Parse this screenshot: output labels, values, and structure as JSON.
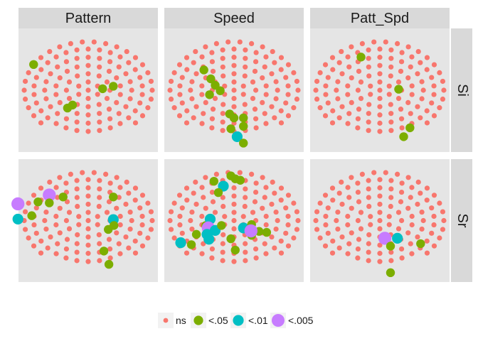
{
  "chart_data": {
    "type": "scatter",
    "facet_columns": [
      "Pattern",
      "Speed",
      "Patt_Spd"
    ],
    "facet_rows": [
      "Si",
      "Sr"
    ],
    "layout": "grid",
    "x_range": [
      -1,
      1
    ],
    "y_range": [
      -1,
      1
    ],
    "grid": false,
    "axes_shown": false,
    "background": "#e5e5e5",
    "strip_background": "#d9d9d9",
    "legend": {
      "position": "bottom",
      "title": "",
      "levels": [
        {
          "label": "ns",
          "color": "#f8766d",
          "size": "small"
        },
        {
          "label": "<.05",
          "color": "#7cae00",
          "size": "medium"
        },
        {
          "label": "<.01",
          "color": "#00bfc4",
          "size": "large"
        },
        {
          "label": "<.005",
          "color": "#c77cff",
          "size": "largest"
        }
      ]
    },
    "electrode_layout": "the same ~120 electrode sites (ns, red) appear in every panel",
    "significant_points": [
      {
        "row": "Si",
        "col": "Pattern",
        "points": [
          {
            "x": -0.87,
            "y": 0.52,
            "level": "<.05"
          },
          {
            "x": 0.23,
            "y": 0.03,
            "level": "<.05"
          },
          {
            "x": 0.4,
            "y": 0.08,
            "level": "<.05"
          },
          {
            "x": -0.33,
            "y": -0.36,
            "level": "<.05"
          },
          {
            "x": -0.25,
            "y": -0.3,
            "level": "<.05"
          }
        ]
      },
      {
        "row": "Si",
        "col": "Speed",
        "points": [
          {
            "x": -0.48,
            "y": 0.41,
            "level": "<.05"
          },
          {
            "x": -0.37,
            "y": 0.23,
            "level": "<.05"
          },
          {
            "x": -0.3,
            "y": 0.1,
            "level": "<.05"
          },
          {
            "x": -0.22,
            "y": -0.01,
            "level": "<.05"
          },
          {
            "x": -0.39,
            "y": -0.09,
            "level": "<.05"
          },
          {
            "x": -0.07,
            "y": -0.48,
            "level": "<.05"
          },
          {
            "x": 0.0,
            "y": -0.56,
            "level": "<.05"
          },
          {
            "x": 0.15,
            "y": -0.56,
            "level": "<.05"
          },
          {
            "x": 0.15,
            "y": -0.73,
            "level": "<.05"
          },
          {
            "x": -0.05,
            "y": -0.78,
            "level": "<.05"
          },
          {
            "x": 0.05,
            "y": -0.94,
            "level": "<.01"
          },
          {
            "x": 0.15,
            "y": -1.07,
            "level": "<.05"
          }
        ]
      },
      {
        "row": "Si",
        "col": "Patt_Spd",
        "points": [
          {
            "x": -0.3,
            "y": 0.67,
            "level": "<.05"
          },
          {
            "x": 0.3,
            "y": 0.02,
            "level": "<.05"
          },
          {
            "x": 0.48,
            "y": -0.76,
            "level": "<.05"
          },
          {
            "x": 0.38,
            "y": -0.94,
            "level": "<.05"
          }
        ]
      },
      {
        "row": "Sr",
        "col": "Pattern",
        "points": [
          {
            "x": -1.12,
            "y": 0.34,
            "level": "<.005"
          },
          {
            "x": -0.62,
            "y": 0.52,
            "level": "<.005"
          },
          {
            "x": -0.8,
            "y": 0.38,
            "level": "<.05"
          },
          {
            "x": -0.62,
            "y": 0.36,
            "level": "<.05"
          },
          {
            "x": -0.4,
            "y": 0.48,
            "level": "<.05"
          },
          {
            "x": -0.9,
            "y": 0.1,
            "level": "<.05"
          },
          {
            "x": -1.12,
            "y": 0.03,
            "level": "<.01"
          },
          {
            "x": 0.4,
            "y": 0.48,
            "level": "<.05"
          },
          {
            "x": 0.4,
            "y": 0.02,
            "level": "<.01"
          },
          {
            "x": 0.41,
            "y": -0.1,
            "level": "<.05"
          },
          {
            "x": 0.32,
            "y": -0.18,
            "level": "<.05"
          },
          {
            "x": 0.25,
            "y": -0.62,
            "level": "<.05"
          },
          {
            "x": 0.33,
            "y": -0.89,
            "level": "<.05"
          }
        ]
      },
      {
        "row": "Sr",
        "col": "Speed",
        "points": [
          {
            "x": -0.05,
            "y": 0.91,
            "level": "<.05"
          },
          {
            "x": 0.02,
            "y": 0.85,
            "level": "<.05"
          },
          {
            "x": 0.1,
            "y": 0.82,
            "level": "<.05"
          },
          {
            "x": -0.32,
            "y": 0.8,
            "level": "<.05"
          },
          {
            "x": -0.17,
            "y": 0.7,
            "level": "<.01"
          },
          {
            "x": -0.25,
            "y": 0.57,
            "level": "<.05"
          },
          {
            "x": -0.45,
            "y": -0.1,
            "level": "<.05"
          },
          {
            "x": -0.38,
            "y": 0.03,
            "level": "<.01"
          },
          {
            "x": -0.41,
            "y": -0.15,
            "level": "<.005"
          },
          {
            "x": -0.3,
            "y": -0.2,
            "level": "<.01"
          },
          {
            "x": -0.43,
            "y": -0.28,
            "level": "<.01"
          },
          {
            "x": -0.4,
            "y": -0.38,
            "level": "<.01"
          },
          {
            "x": -0.6,
            "y": -0.28,
            "level": "<.05"
          },
          {
            "x": -0.2,
            "y": -0.1,
            "level": "<.05"
          },
          {
            "x": -0.85,
            "y": -0.45,
            "level": "<.01"
          },
          {
            "x": -0.68,
            "y": -0.49,
            "level": "<.05"
          },
          {
            "x": 0.15,
            "y": -0.15,
            "level": "<.01"
          },
          {
            "x": 0.28,
            "y": -0.08,
            "level": "<.05"
          },
          {
            "x": 0.3,
            "y": -0.2,
            "level": "<.05"
          },
          {
            "x": 0.28,
            "y": -0.3,
            "level": "<.05"
          },
          {
            "x": 0.4,
            "y": -0.22,
            "level": "<.05"
          },
          {
            "x": 0.52,
            "y": -0.24,
            "level": "<.05"
          },
          {
            "x": 0.27,
            "y": -0.21,
            "level": "<.005"
          },
          {
            "x": -0.05,
            "y": -0.37,
            "level": "<.05"
          },
          {
            "x": 0.02,
            "y": -0.6,
            "level": "<.05"
          }
        ]
      },
      {
        "row": "Sr",
        "col": "Patt_Spd",
        "points": [
          {
            "x": 0.08,
            "y": -0.36,
            "level": "<.005"
          },
          {
            "x": 0.28,
            "y": -0.36,
            "level": "<.01"
          },
          {
            "x": 0.17,
            "y": -0.52,
            "level": "<.05"
          },
          {
            "x": 0.65,
            "y": -0.47,
            "level": "<.05"
          },
          {
            "x": 0.17,
            "y": -1.06,
            "level": "<.05"
          }
        ]
      }
    ]
  }
}
